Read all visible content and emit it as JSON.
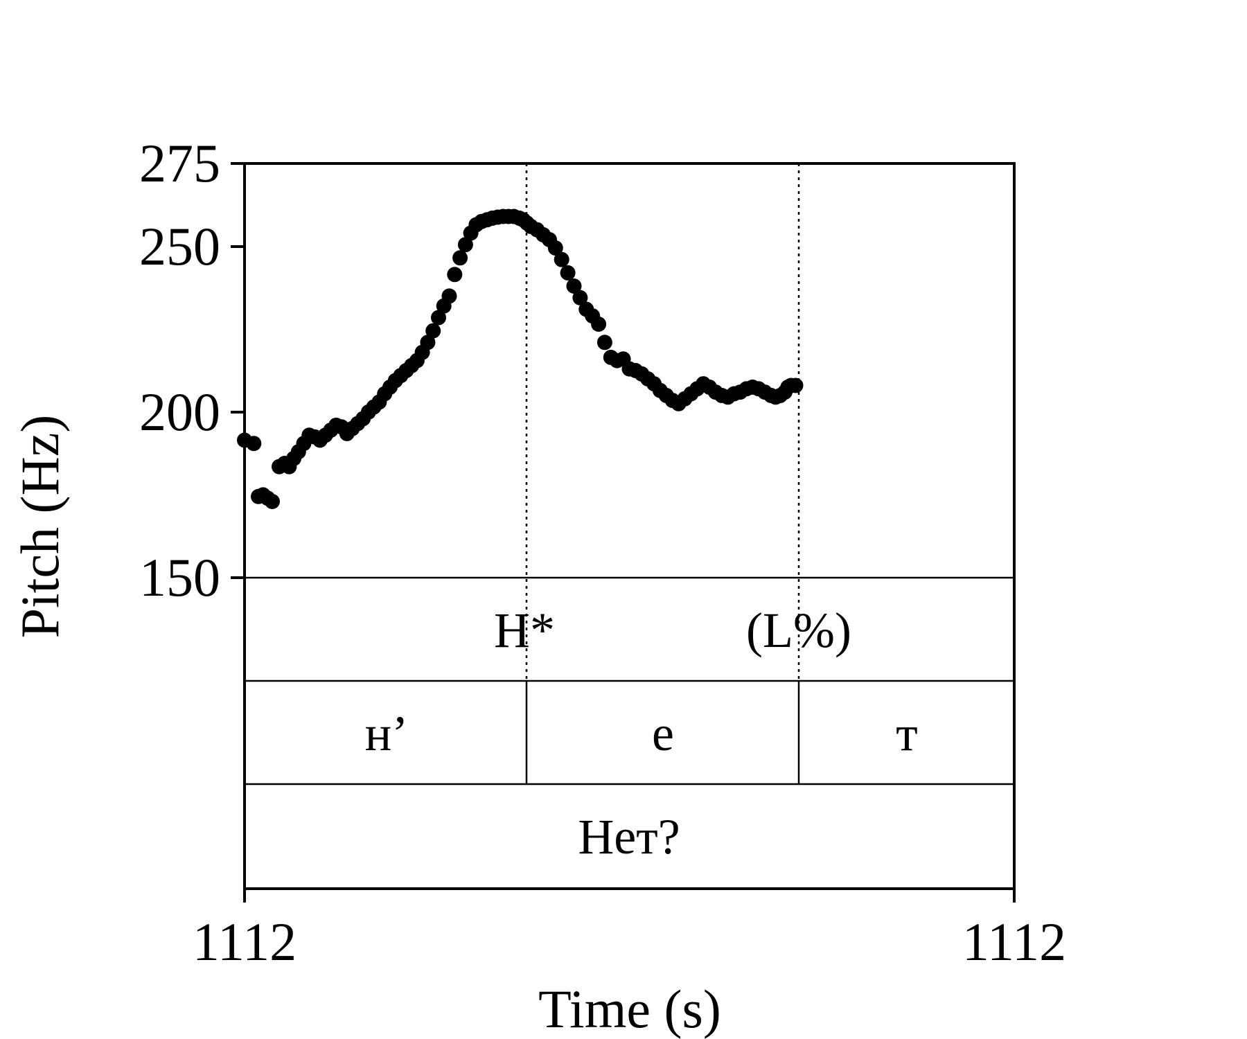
{
  "chart_data": {
    "type": "scatter",
    "xlabel": "Time (s)",
    "ylabel": "Pitch (Hz)",
    "ylim": [
      150,
      275
    ],
    "y_ticks": [
      "150",
      "200",
      "250",
      "275"
    ],
    "x_tick_labels": [
      "1112",
      "1112"
    ],
    "grid": false,
    "legend": "none",
    "point_color": "#000000",
    "tiers": {
      "tones": [
        "H*",
        "(L%)"
      ],
      "segments": [
        "н’",
        "е",
        "т"
      ],
      "word": "Нет?"
    },
    "series": [
      {
        "x": [
          0.0,
          0.012,
          0.018,
          0.024,
          0.03,
          0.036,
          0.045,
          0.052,
          0.058,
          0.064,
          0.07,
          0.077,
          0.084,
          0.091,
          0.098,
          0.105,
          0.112,
          0.119,
          0.126,
          0.133,
          0.14,
          0.147,
          0.154,
          0.161,
          0.168,
          0.175,
          0.182,
          0.189,
          0.196,
          0.203,
          0.21,
          0.217,
          0.224,
          0.231,
          0.238,
          0.245,
          0.252,
          0.259,
          0.266,
          0.273,
          0.28,
          0.287,
          0.294,
          0.301,
          0.308,
          0.315,
          0.322,
          0.329,
          0.336,
          0.343,
          0.35,
          0.357,
          0.362,
          0.367,
          0.372,
          0.38,
          0.388,
          0.396,
          0.404,
          0.412,
          0.42,
          0.428,
          0.436,
          0.444,
          0.452,
          0.46,
          0.468,
          0.476,
          0.484,
          0.492,
          0.5,
          0.508,
          0.516,
          0.524,
          0.532,
          0.54,
          0.548,
          0.556,
          0.564,
          0.572,
          0.58,
          0.588,
          0.596,
          0.604,
          0.612,
          0.62,
          0.628,
          0.636,
          0.644,
          0.652,
          0.66,
          0.668,
          0.676,
          0.684,
          0.69,
          0.696,
          0.702,
          0.706,
          0.71,
          0.716
        ],
        "y": [
          191.5,
          190.5,
          174.5,
          175.0,
          174.0,
          173.0,
          183.5,
          184.5,
          183.5,
          186.0,
          188.0,
          190.5,
          193.0,
          192.5,
          191.5,
          193.0,
          194.5,
          196.0,
          195.5,
          193.5,
          195.0,
          196.5,
          198.0,
          200.0,
          201.5,
          203.0,
          205.5,
          207.5,
          209.5,
          211.0,
          212.5,
          214.0,
          215.5,
          218.0,
          221.0,
          224.5,
          228.5,
          232.0,
          235.0,
          241.5,
          246.5,
          250.5,
          254.0,
          256.5,
          257.5,
          258.0,
          258.5,
          258.8,
          259.0,
          259.0,
          259.0,
          258.5,
          258.0,
          257.0,
          256.0,
          255.0,
          253.5,
          252.0,
          249.5,
          246.0,
          242.0,
          238.0,
          234.5,
          231.0,
          229.0,
          226.5,
          221.0,
          216.5,
          215.5,
          216.0,
          213.0,
          212.5,
          211.5,
          210.0,
          208.5,
          206.5,
          205.0,
          203.5,
          202.5,
          204.0,
          205.5,
          207.0,
          208.5,
          207.5,
          206.0,
          205.0,
          204.5,
          205.5,
          206.0,
          207.0,
          207.5,
          207.0,
          206.0,
          205.0,
          204.5,
          205.0,
          206.0,
          207.5,
          208.0,
          208.0
        ]
      }
    ]
  }
}
